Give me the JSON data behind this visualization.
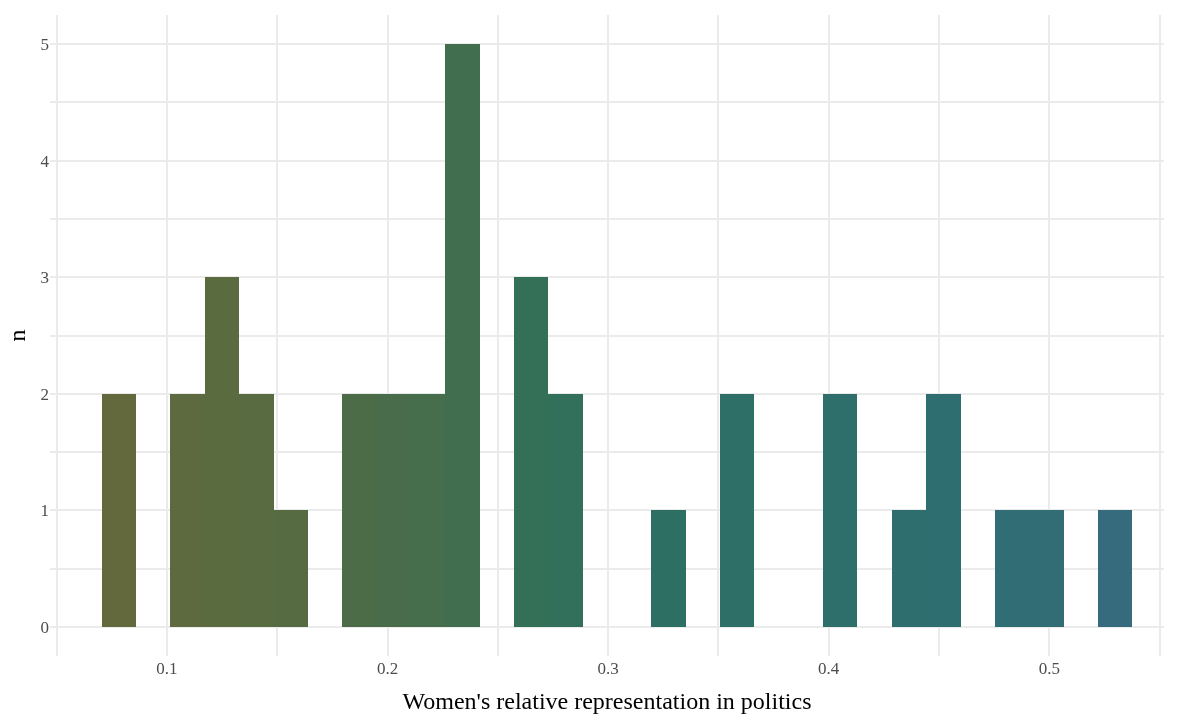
{
  "chart_data": {
    "type": "histogram",
    "xlabel": "Women's relative representation in politics",
    "ylabel": "n",
    "bins": [
      0.0705,
      0.0861,
      0.1016,
      0.1172,
      0.1328,
      0.1484,
      0.1639,
      0.1795,
      0.1951,
      0.2106,
      0.2262,
      0.2418,
      0.2573,
      0.2729,
      0.2885,
      0.3041,
      0.3196,
      0.3352,
      0.3508,
      0.3663,
      0.3819,
      0.3975,
      0.413,
      0.4286,
      0.4442,
      0.4598,
      0.4753,
      0.4909,
      0.5065,
      0.522,
      0.5376
    ],
    "values": [
      2,
      0,
      2,
      3,
      2,
      1,
      0,
      2,
      2,
      2,
      5,
      0,
      3,
      2,
      0,
      0,
      1,
      0,
      2,
      0,
      0,
      2,
      0,
      1,
      2,
      0,
      1,
      1,
      0,
      1
    ],
    "colors": [
      "#63693c",
      "#606a3e",
      "#5d6a3f",
      "#5b6b40",
      "#586b41",
      "#566b42",
      "#516c45",
      "#4c6c48",
      "#496d4a",
      "#466d4c",
      "#426e50",
      "#3b6f54",
      "#347058",
      "#32705b",
      "#31705e",
      "#307060",
      "#2e6f63",
      "#2e6f66",
      "#2e6f68",
      "#2e6f69",
      "#2e6f6a",
      "#2e6f6b",
      "#2f6e6c",
      "#2f6e6e",
      "#2f6e70",
      "#306e72",
      "#316d74",
      "#326d76",
      "#346c79",
      "#356b7c"
    ],
    "xlim": [
      0.047,
      0.552
    ],
    "xticks": [
      {
        "value": 0.05,
        "label": null
      },
      0.1,
      {
        "value": 0.15,
        "label": null
      },
      0.2,
      {
        "value": 0.25,
        "label": null
      },
      0.3,
      {
        "value": 0.35,
        "label": null
      },
      0.4,
      {
        "value": 0.45,
        "label": null
      },
      0.5,
      {
        "value": 0.55,
        "label": null
      }
    ],
    "ylim": [
      -0.25,
      5.25
    ],
    "yticks": [
      0,
      {
        "value": 0.5,
        "label": null
      },
      1,
      {
        "value": 1.5,
        "label": null
      },
      2,
      {
        "value": 2.5,
        "label": null
      },
      3,
      {
        "value": 3.5,
        "label": null
      },
      4,
      {
        "value": 4.5,
        "label": null
      },
      5
    ],
    "grid": true
  }
}
